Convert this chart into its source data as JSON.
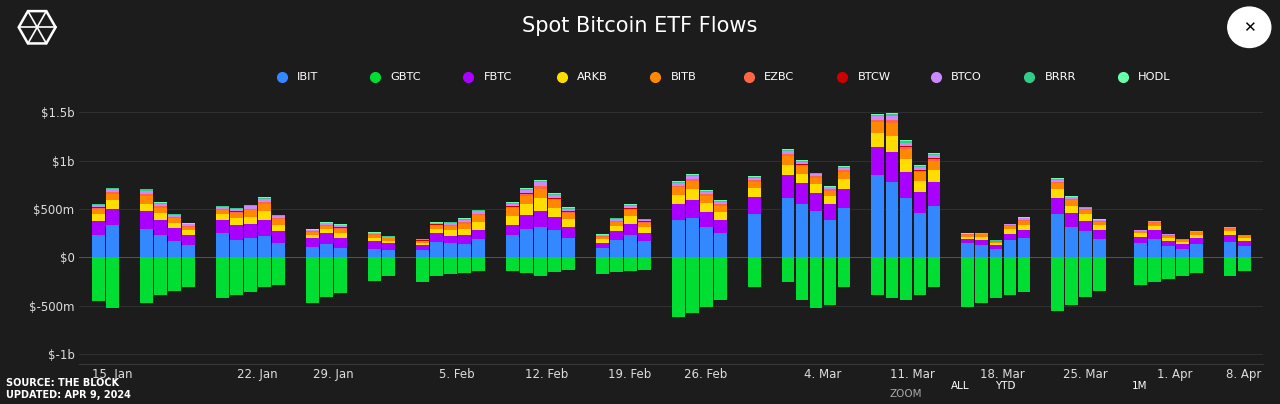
{
  "title": "Spot Bitcoin ETF Flows",
  "background_color": "#1c1c1c",
  "header_color": "#111111",
  "text_color": "#dddddd",
  "grid_color": "#383838",
  "purple_line_color": "#7700cc",
  "source_text": "SOURCE: THE BLOCK\nUPDATED: APR 9, 2024",
  "etfs": [
    "IBIT",
    "GBTC",
    "FBTC",
    "ARKB",
    "BITB",
    "EZBC",
    "BTCW",
    "BTCO",
    "BRRR",
    "HODL"
  ],
  "colors": {
    "IBIT": "#3388ff",
    "GBTC": "#00dd33",
    "FBTC": "#aa00ff",
    "ARKB": "#ffdd00",
    "BITB": "#ff8800",
    "EZBC": "#ff6644",
    "BTCW": "#cc0000",
    "BTCO": "#cc88ff",
    "BRRR": "#33cc88",
    "HODL": "#66ffaa"
  },
  "ylim": [
    -1100,
    1700
  ],
  "ytick_vals": [
    -1000,
    -500,
    0,
    500,
    1000,
    1500
  ],
  "ytick_labels": [
    "$-1b",
    "$-500m",
    "$0",
    "$500m",
    "$1b",
    "$1.5b"
  ],
  "week_groups": [
    {
      "label": "15. Jan",
      "days": 2
    },
    {
      "label": "",
      "days": 4
    },
    {
      "label": "22. Jan",
      "days": 5
    },
    {
      "label": "29. Jan",
      "days": 3
    },
    {
      "label": "",
      "days": 2
    },
    {
      "label": "5. Feb",
      "days": 5
    },
    {
      "label": "12. Feb",
      "days": 5
    },
    {
      "label": "19. Feb",
      "days": 4
    },
    {
      "label": "26. Feb",
      "days": 4
    },
    {
      "label": "",
      "days": 1
    },
    {
      "label": "4. Mar",
      "days": 5
    },
    {
      "label": "11. Mar",
      "days": 5
    },
    {
      "label": "18. Mar",
      "days": 5
    },
    {
      "label": "25. Mar",
      "days": 4
    },
    {
      "label": "",
      "days": 0
    },
    {
      "label": "1. Apr",
      "days": 5
    },
    {
      "label": "8. Apr",
      "days": 2
    }
  ],
  "flows": {
    "IBIT": [
      231,
      332,
      289,
      234,
      167,
      123,
      253,
      178,
      195,
      218,
      145,
      110,
      135,
      97,
      90,
      78,
      70,
      162,
      145,
      137,
      189,
      226,
      289,
      312,
      278,
      201,
      95,
      178,
      234,
      167,
      389,
      402,
      312,
      256,
      449,
      612,
      556,
      478,
      389,
      512,
      849,
      778,
      612,
      456,
      534,
      145,
      123,
      89,
      178,
      201,
      445,
      312,
      267,
      189,
      145,
      189,
      112,
      89,
      134,
      156,
      112
    ],
    "GBTC": [
      -456,
      -523,
      -478,
      -389,
      -345,
      -312,
      -423,
      -389,
      -356,
      -312,
      -289,
      -478,
      -412,
      -367,
      -245,
      -189,
      -256,
      -198,
      -178,
      -167,
      -145,
      -145,
      -167,
      -189,
      -156,
      -134,
      -178,
      -156,
      -145,
      -134,
      -623,
      -578,
      -512,
      -445,
      -312,
      -256,
      -445,
      -523,
      -489,
      -312,
      -389,
      -423,
      -445,
      -389,
      -312,
      -512,
      -478,
      -423,
      -389,
      -356,
      -556,
      -489,
      -412,
      -345,
      -289,
      -256,
      -223,
      -198,
      -167,
      -189,
      -145
    ],
    "FBTC": [
      145,
      167,
      189,
      156,
      134,
      112,
      134,
      156,
      145,
      167,
      123,
      89,
      112,
      98,
      78,
      67,
      56,
      89,
      78,
      89,
      98,
      112,
      145,
      167,
      134,
      112,
      56,
      89,
      112,
      89,
      167,
      189,
      156,
      134,
      178,
      234,
      212,
      189,
      167,
      198,
      289,
      312,
      267,
      223,
      245,
      45,
      56,
      34,
      67,
      78,
      167,
      145,
      112,
      89,
      67,
      89,
      56,
      45,
      67,
      78,
      56
    ],
    "ARKB": [
      67,
      89,
      78,
      67,
      56,
      45,
      56,
      67,
      78,
      89,
      67,
      34,
      45,
      56,
      34,
      28,
      23,
      45,
      56,
      67,
      78,
      89,
      112,
      134,
      98,
      78,
      34,
      56,
      78,
      56,
      89,
      112,
      89,
      78,
      89,
      112,
      98,
      89,
      78,
      98,
      145,
      167,
      134,
      112,
      123,
      23,
      34,
      23,
      45,
      56,
      89,
      78,
      67,
      56,
      34,
      45,
      34,
      28,
      34,
      34,
      28
    ],
    "BITB": [
      56,
      67,
      78,
      56,
      45,
      34,
      45,
      56,
      67,
      78,
      56,
      28,
      34,
      45,
      28,
      23,
      19,
      34,
      45,
      56,
      67,
      78,
      89,
      98,
      78,
      67,
      28,
      45,
      67,
      45,
      78,
      89,
      78,
      67,
      67,
      89,
      78,
      67,
      56,
      78,
      112,
      134,
      112,
      89,
      98,
      19,
      23,
      17,
      34,
      45,
      67,
      56,
      45,
      34,
      23,
      34,
      23,
      19,
      23,
      28,
      19
    ],
    "EZBC": [
      12,
      15,
      18,
      14,
      11,
      9,
      11,
      13,
      14,
      16,
      12,
      7,
      9,
      11,
      7,
      6,
      5,
      8,
      10,
      13,
      14,
      16,
      19,
      22,
      17,
      14,
      6,
      9,
      13,
      10,
      15,
      17,
      15,
      13,
      13,
      17,
      15,
      13,
      11,
      14,
      21,
      24,
      20,
      17,
      18,
      4,
      5,
      3,
      6,
      8,
      12,
      10,
      8,
      6,
      4,
      6,
      4,
      3,
      4,
      5,
      3
    ],
    "BTCW": [
      4,
      5,
      6,
      4,
      3,
      2,
      3,
      4,
      4,
      5,
      3,
      2,
      2,
      3,
      2,
      1,
      1,
      2,
      3,
      4,
      4,
      5,
      6,
      7,
      5,
      4,
      1,
      2,
      4,
      3,
      4,
      5,
      4,
      3,
      3,
      4,
      4,
      3,
      2,
      3,
      5,
      6,
      5,
      4,
      4,
      1,
      1,
      1,
      1,
      2,
      3,
      2,
      2,
      1,
      1,
      1,
      1,
      1,
      1,
      1,
      1
    ],
    "BTCO": [
      23,
      28,
      32,
      25,
      20,
      16,
      20,
      24,
      26,
      29,
      22,
      12,
      16,
      19,
      12,
      10,
      8,
      14,
      18,
      22,
      25,
      28,
      34,
      39,
      30,
      25,
      10,
      16,
      23,
      18,
      27,
      31,
      26,
      22,
      22,
      29,
      26,
      22,
      19,
      23,
      37,
      42,
      35,
      29,
      32,
      6,
      8,
      5,
      10,
      13,
      21,
      17,
      13,
      10,
      6,
      9,
      6,
      4,
      6,
      8,
      5
    ],
    "BRRR": [
      8,
      9,
      11,
      8,
      7,
      5,
      7,
      8,
      9,
      10,
      7,
      4,
      5,
      7,
      4,
      3,
      3,
      5,
      6,
      8,
      9,
      10,
      12,
      14,
      11,
      9,
      4,
      6,
      8,
      6,
      10,
      11,
      9,
      8,
      8,
      10,
      9,
      8,
      7,
      8,
      13,
      15,
      13,
      11,
      12,
      2,
      3,
      2,
      4,
      5,
      8,
      6,
      5,
      4,
      2,
      3,
      2,
      2,
      2,
      3,
      2
    ],
    "HODL": [
      6,
      8,
      9,
      7,
      5,
      4,
      5,
      6,
      7,
      8,
      6,
      3,
      4,
      5,
      3,
      2,
      2,
      4,
      5,
      6,
      7,
      8,
      10,
      11,
      9,
      7,
      3,
      5,
      7,
      5,
      8,
      9,
      8,
      7,
      7,
      8,
      7,
      6,
      5,
      7,
      11,
      12,
      10,
      9,
      9,
      2,
      2,
      1,
      3,
      4,
      6,
      5,
      4,
      3,
      2,
      3,
      2,
      1,
      2,
      2,
      2
    ]
  }
}
